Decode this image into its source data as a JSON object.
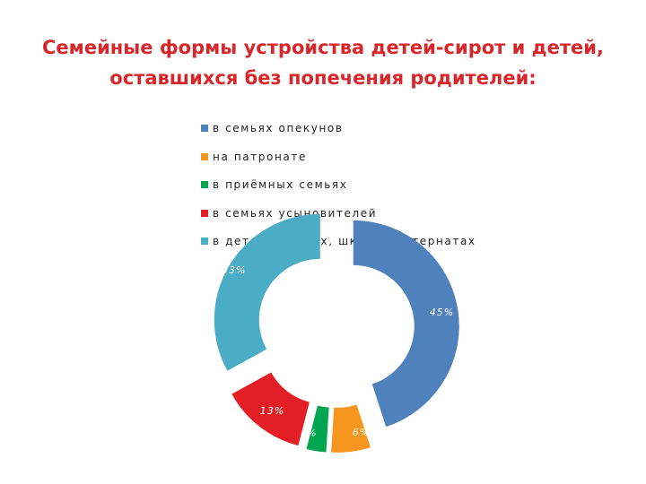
{
  "title": {
    "line1": "Семейные формы устройства детей-сирот и детей,",
    "line2": "оставшихся без попечения родителей:"
  },
  "chart_data": {
    "type": "pie",
    "style": "exploded-donut",
    "title": "Семейные формы устройства детей-сирот и детей, оставшихся без попечения родителей:",
    "legend_position": "top",
    "categories": [
      "в семьях опекунов",
      "на патронате",
      "в приёмных семьях",
      "в семьях усыновителей",
      "в детских домах, школах-интернатах"
    ],
    "values": [
      45,
      6,
      3,
      13,
      33
    ],
    "value_labels": [
      "45%",
      "6%",
      "3%",
      "13%",
      "33%"
    ],
    "colors": [
      "#4f81bd",
      "#f7961e",
      "#00a550",
      "#e31e24",
      "#4bacc6"
    ]
  }
}
